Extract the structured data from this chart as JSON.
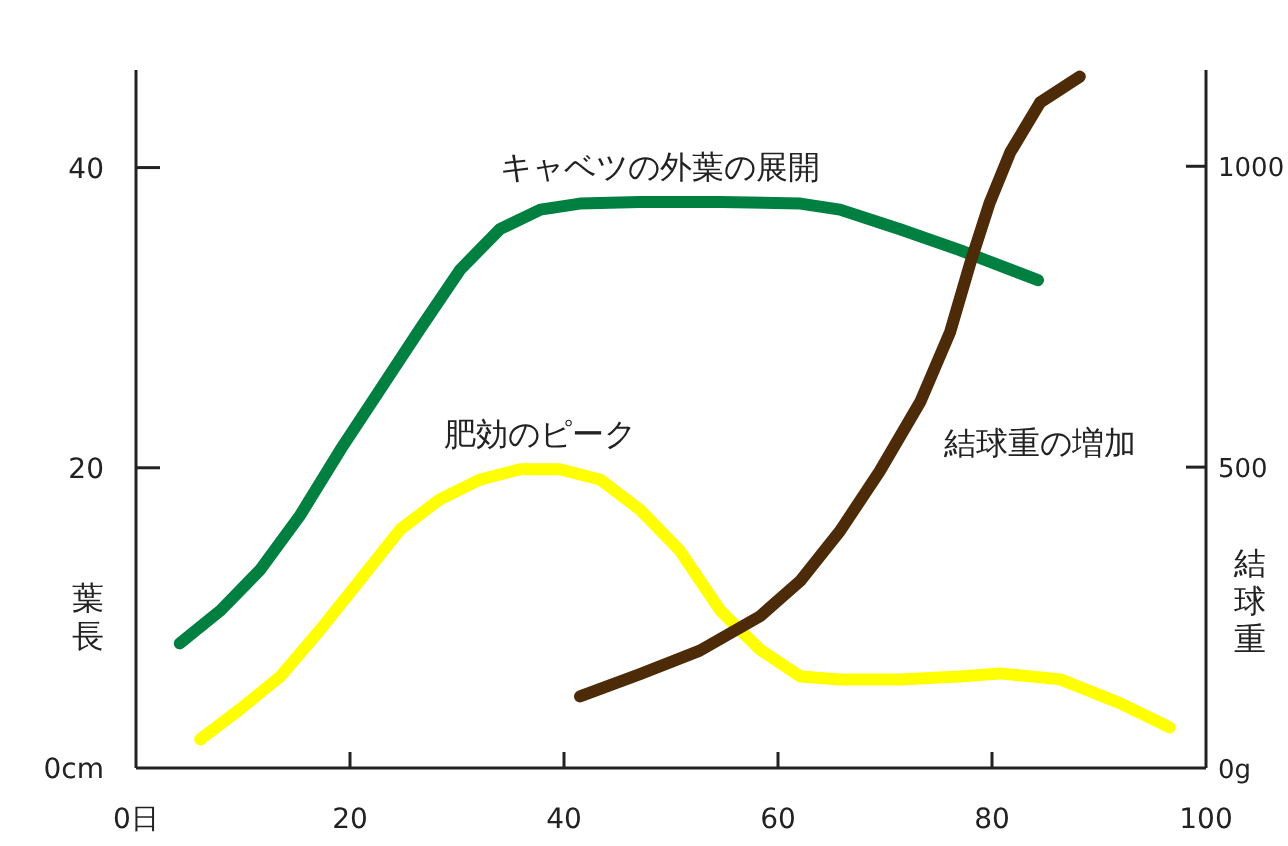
{
  "chart_data": {
    "type": "line",
    "ylabel": "葉長",
    "y2label": "結球重",
    "xlim": [
      0,
      100
    ],
    "xticks": [
      {
        "value": 0,
        "label": "0日"
      },
      20,
      40,
      60,
      80,
      100
    ],
    "ylim": [
      0,
      46.5
    ],
    "yticks": [
      {
        "value": 0,
        "label": "0cm"
      },
      20,
      40
    ],
    "y2lim": [
      0,
      1160
    ],
    "y2ticks": [
      {
        "value": 0,
        "label": "0g"
      },
      500,
      1000
    ],
    "grid": false,
    "legend": false,
    "marker": "none",
    "line_style": "solid",
    "series": [
      {
        "name": "キャベツの外葉の展開",
        "color": "#008040",
        "x": [
          4.1,
          7.9,
          11.6,
          15.3,
          19.1,
          22.8,
          26.5,
          30.3,
          34.0,
          37.8,
          41.5,
          47.1,
          54.6,
          62.1,
          65.8,
          71.4,
          77.0,
          84.3
        ],
        "values": [
          8.3,
          10.5,
          13.2,
          16.8,
          21.2,
          25.2,
          29.2,
          33.2,
          35.9,
          37.2,
          37.6,
          37.7,
          37.7,
          37.6,
          37.2,
          35.9,
          34.5,
          32.5
        ]
      },
      {
        "name": "肥効のピーク",
        "color": "#ffff00",
        "x": [
          6.0,
          9.7,
          13.5,
          17.2,
          20.9,
          24.7,
          28.4,
          32.1,
          35.9,
          39.6,
          43.4,
          47.1,
          50.8,
          54.6,
          58.3,
          62.1,
          65.8,
          71.4,
          77.0,
          80.7,
          86.4,
          92.0,
          96.6
        ],
        "values": [
          1.9,
          3.9,
          6.1,
          9.2,
          12.5,
          15.9,
          17.9,
          19.2,
          19.9,
          19.9,
          19.2,
          17.2,
          14.5,
          10.5,
          7.9,
          6.1,
          5.9,
          5.9,
          6.1,
          6.3,
          5.9,
          4.3,
          2.7
        ]
      },
      {
        "name": "結球重の増加",
        "color": "#4d2a08",
        "axis": "y2",
        "x": [
          41.5,
          47.1,
          52.7,
          58.3,
          62.1,
          65.8,
          69.5,
          73.3,
          76.1,
          78.0,
          79.8,
          81.7,
          84.5,
          88.2
        ],
        "values": [
          119,
          156,
          195,
          252,
          311,
          394,
          493,
          609,
          725,
          841,
          940,
          1023,
          1106,
          1149
        ]
      }
    ]
  }
}
